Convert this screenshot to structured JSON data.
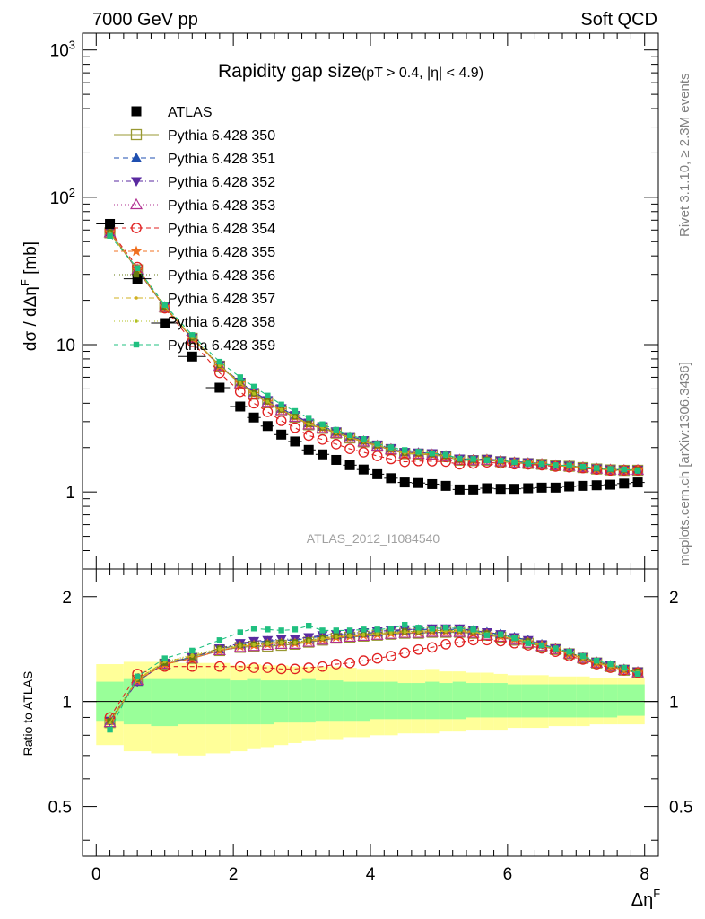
{
  "header": {
    "left": "7000 GeV pp",
    "right": "Soft QCD"
  },
  "side_labels": {
    "rivet": "Rivet 3.1.10, ≥ 2.3M events",
    "mcplots": "mcplots.cern.ch [arXiv:1306.3436]"
  },
  "watermark": "ATLAS_2012_I1084540",
  "chart_data": {
    "type": "scatter",
    "title": "Rapidity gap size",
    "subtitle": "(pT > 0.4, |η| < 4.9)",
    "xlabel": "ΔηF",
    "ylabel": "dσ / dΔηF [mb]",
    "ratio_ylabel": "Ratio to ATLAS",
    "xlim": [
      -0.2,
      8.2
    ],
    "ylim": [
      0.3,
      1300
    ],
    "yscale": "log",
    "ratio_ylim": [
      0.36,
      2.4
    ],
    "ratio_yscale": "log",
    "legend_placement": "top-left",
    "xticks": [
      "0",
      "2",
      "4",
      "6",
      "8"
    ],
    "yticks": [
      "1",
      "10",
      "10²",
      "10³"
    ],
    "ratio_yticks": [
      "0.5",
      "1",
      "2"
    ],
    "x": [
      0.2,
      0.6,
      1.0,
      1.4,
      1.8,
      2.1,
      2.3,
      2.5,
      2.7,
      2.9,
      3.1,
      3.3,
      3.5,
      3.7,
      3.9,
      4.1,
      4.3,
      4.5,
      4.7,
      4.9,
      5.1,
      5.3,
      5.5,
      5.7,
      5.9,
      6.1,
      6.3,
      6.5,
      6.7,
      6.9,
      7.1,
      7.3,
      7.5,
      7.7,
      7.9
    ],
    "atlas": [
      66,
      28,
      14,
      8.3,
      5.1,
      3.8,
      3.2,
      2.8,
      2.45,
      2.2,
      1.93,
      1.8,
      1.65,
      1.52,
      1.42,
      1.32,
      1.24,
      1.16,
      1.15,
      1.13,
      1.1,
      1.04,
      1.04,
      1.06,
      1.05,
      1.05,
      1.06,
      1.07,
      1.07,
      1.09,
      1.1,
      1.11,
      1.12,
      1.14,
      1.16
    ],
    "atlas_stat_band": [
      [
        0.88,
        1.14
      ],
      [
        0.86,
        1.16
      ],
      [
        0.85,
        1.16
      ],
      [
        0.86,
        1.16
      ],
      [
        0.86,
        1.16
      ],
      [
        0.86,
        1.15
      ],
      [
        0.86,
        1.16
      ],
      [
        0.86,
        1.15
      ],
      [
        0.87,
        1.15
      ],
      [
        0.87,
        1.15
      ],
      [
        0.87,
        1.16
      ],
      [
        0.88,
        1.15
      ],
      [
        0.88,
        1.15
      ],
      [
        0.88,
        1.14
      ],
      [
        0.88,
        1.14
      ],
      [
        0.89,
        1.14
      ],
      [
        0.89,
        1.14
      ],
      [
        0.89,
        1.13
      ],
      [
        0.89,
        1.13
      ],
      [
        0.89,
        1.14
      ],
      [
        0.89,
        1.13
      ],
      [
        0.89,
        1.14
      ],
      [
        0.9,
        1.13
      ],
      [
        0.9,
        1.13
      ],
      [
        0.9,
        1.13
      ],
      [
        0.9,
        1.12
      ],
      [
        0.9,
        1.12
      ],
      [
        0.9,
        1.12
      ],
      [
        0.9,
        1.12
      ],
      [
        0.9,
        1.12
      ],
      [
        0.9,
        1.12
      ],
      [
        0.9,
        1.12
      ],
      [
        0.9,
        1.12
      ],
      [
        0.91,
        1.12
      ],
      [
        0.91,
        1.12
      ]
    ],
    "atlas_total_band": [
      [
        0.75,
        1.28
      ],
      [
        0.72,
        1.3
      ],
      [
        0.71,
        1.3
      ],
      [
        0.7,
        1.29
      ],
      [
        0.71,
        1.29
      ],
      [
        0.72,
        1.27
      ],
      [
        0.73,
        1.28
      ],
      [
        0.74,
        1.27
      ],
      [
        0.75,
        1.27
      ],
      [
        0.76,
        1.26
      ],
      [
        0.77,
        1.26
      ],
      [
        0.78,
        1.26
      ],
      [
        0.78,
        1.26
      ],
      [
        0.79,
        1.25
      ],
      [
        0.79,
        1.24
      ],
      [
        0.8,
        1.24
      ],
      [
        0.8,
        1.23
      ],
      [
        0.81,
        1.23
      ],
      [
        0.81,
        1.23
      ],
      [
        0.81,
        1.24
      ],
      [
        0.82,
        1.22
      ],
      [
        0.82,
        1.22
      ],
      [
        0.83,
        1.21
      ],
      [
        0.83,
        1.21
      ],
      [
        0.83,
        1.2
      ],
      [
        0.84,
        1.19
      ],
      [
        0.84,
        1.19
      ],
      [
        0.84,
        1.19
      ],
      [
        0.85,
        1.18
      ],
      [
        0.85,
        1.18
      ],
      [
        0.85,
        1.18
      ],
      [
        0.86,
        1.17
      ],
      [
        0.86,
        1.17
      ],
      [
        0.86,
        1.17
      ],
      [
        0.86,
        1.17
      ]
    ],
    "series": [
      {
        "name": "ATLAS",
        "color": "#000000",
        "marker": "square-filled"
      },
      {
        "name": "Pythia 6.428 350",
        "color": "#999933",
        "marker": "square-open",
        "dash": "",
        "ratio": [
          0.87,
          1.15,
          1.28,
          1.33,
          1.4,
          1.43,
          1.44,
          1.44,
          1.45,
          1.46,
          1.48,
          1.5,
          1.52,
          1.53,
          1.54,
          1.55,
          1.56,
          1.57,
          1.57,
          1.58,
          1.58,
          1.58,
          1.57,
          1.55,
          1.53,
          1.5,
          1.47,
          1.44,
          1.41,
          1.37,
          1.33,
          1.29,
          1.26,
          1.23,
          1.21
        ]
      },
      {
        "name": "Pythia 6.428 351",
        "color": "#1f4fb0",
        "marker": "triangle-up-filled",
        "dash": "6,4",
        "ratio": [
          0.88,
          1.14,
          1.29,
          1.34,
          1.41,
          1.46,
          1.48,
          1.49,
          1.5,
          1.5,
          1.52,
          1.54,
          1.55,
          1.56,
          1.57,
          1.58,
          1.59,
          1.6,
          1.61,
          1.61,
          1.61,
          1.61,
          1.6,
          1.58,
          1.56,
          1.53,
          1.5,
          1.46,
          1.42,
          1.38,
          1.34,
          1.3,
          1.27,
          1.24,
          1.22
        ]
      },
      {
        "name": "Pythia 6.428 352",
        "color": "#5a2aa0",
        "marker": "triangle-down-filled",
        "dash": "6,3,1,3",
        "ratio": [
          0.88,
          1.14,
          1.29,
          1.34,
          1.42,
          1.47,
          1.49,
          1.5,
          1.51,
          1.51,
          1.53,
          1.55,
          1.56,
          1.57,
          1.58,
          1.59,
          1.6,
          1.61,
          1.61,
          1.62,
          1.62,
          1.62,
          1.6,
          1.58,
          1.56,
          1.53,
          1.5,
          1.46,
          1.42,
          1.38,
          1.34,
          1.3,
          1.27,
          1.24,
          1.22
        ]
      },
      {
        "name": "Pythia 6.428 353",
        "color": "#b03090",
        "marker": "triangle-up-open",
        "dash": "1,3",
        "ratio": [
          0.87,
          1.15,
          1.28,
          1.33,
          1.4,
          1.43,
          1.44,
          1.45,
          1.46,
          1.46,
          1.48,
          1.5,
          1.52,
          1.53,
          1.54,
          1.55,
          1.56,
          1.57,
          1.57,
          1.58,
          1.58,
          1.58,
          1.57,
          1.55,
          1.53,
          1.5,
          1.47,
          1.44,
          1.41,
          1.37,
          1.33,
          1.29,
          1.26,
          1.23,
          1.21
        ]
      },
      {
        "name": "Pythia 6.428 354",
        "color": "#e02020",
        "marker": "circle-open",
        "dash": "5,4",
        "ratio": [
          0.9,
          1.2,
          1.26,
          1.26,
          1.26,
          1.26,
          1.25,
          1.25,
          1.24,
          1.24,
          1.25,
          1.26,
          1.28,
          1.29,
          1.31,
          1.33,
          1.35,
          1.38,
          1.41,
          1.43,
          1.46,
          1.48,
          1.5,
          1.5,
          1.49,
          1.47,
          1.45,
          1.42,
          1.39,
          1.35,
          1.32,
          1.28,
          1.25,
          1.23,
          1.21
        ]
      },
      {
        "name": "Pythia 6.428 355",
        "color": "#f07020",
        "marker": "star-filled",
        "dash": "5,3",
        "ratio": [
          0.88,
          1.15,
          1.28,
          1.33,
          1.4,
          1.44,
          1.45,
          1.46,
          1.47,
          1.47,
          1.49,
          1.51,
          1.53,
          1.54,
          1.55,
          1.56,
          1.57,
          1.58,
          1.58,
          1.59,
          1.59,
          1.59,
          1.58,
          1.56,
          1.54,
          1.51,
          1.48,
          1.45,
          1.41,
          1.37,
          1.33,
          1.29,
          1.26,
          1.23,
          1.21
        ]
      },
      {
        "name": "Pythia 6.428 356",
        "color": "#667a10",
        "marker": "square-small-filled",
        "dash": "1,2",
        "ratio": [
          0.88,
          1.16,
          1.29,
          1.34,
          1.42,
          1.45,
          1.46,
          1.47,
          1.48,
          1.48,
          1.5,
          1.52,
          1.54,
          1.55,
          1.56,
          1.57,
          1.58,
          1.59,
          1.59,
          1.6,
          1.6,
          1.6,
          1.59,
          1.57,
          1.55,
          1.52,
          1.49,
          1.45,
          1.42,
          1.38,
          1.34,
          1.3,
          1.27,
          1.24,
          1.22
        ]
      },
      {
        "name": "Pythia 6.428 357",
        "color": "#d0b020",
        "marker": "dot",
        "dash": "6,3,1,3",
        "ratio": [
          0.87,
          1.16,
          1.3,
          1.35,
          1.41,
          1.44,
          1.45,
          1.46,
          1.47,
          1.47,
          1.49,
          1.51,
          1.53,
          1.54,
          1.55,
          1.56,
          1.57,
          1.58,
          1.58,
          1.59,
          1.59,
          1.59,
          1.58,
          1.56,
          1.54,
          1.51,
          1.48,
          1.45,
          1.41,
          1.37,
          1.33,
          1.29,
          1.26,
          1.23,
          1.21
        ]
      },
      {
        "name": "Pythia 6.428 358",
        "color": "#b0c020",
        "marker": "dot",
        "dash": "1,2",
        "ratio": [
          0.87,
          1.16,
          1.3,
          1.36,
          1.42,
          1.45,
          1.46,
          1.47,
          1.48,
          1.48,
          1.5,
          1.52,
          1.54,
          1.55,
          1.56,
          1.57,
          1.58,
          1.59,
          1.59,
          1.6,
          1.6,
          1.6,
          1.59,
          1.57,
          1.55,
          1.52,
          1.49,
          1.45,
          1.42,
          1.38,
          1.34,
          1.3,
          1.27,
          1.24,
          1.22
        ]
      },
      {
        "name": "Pythia 6.428 359",
        "color": "#20c080",
        "marker": "square-small-filled",
        "dash": "5,4",
        "ratio": [
          0.83,
          1.18,
          1.33,
          1.4,
          1.5,
          1.58,
          1.62,
          1.61,
          1.6,
          1.61,
          1.65,
          1.6,
          1.6,
          1.6,
          1.61,
          1.61,
          1.62,
          1.66,
          1.63,
          1.62,
          1.63,
          1.62,
          1.61,
          1.55,
          1.56,
          1.52,
          1.47,
          1.45,
          1.42,
          1.39,
          1.35,
          1.31,
          1.28,
          1.25,
          1.2
        ]
      }
    ]
  }
}
